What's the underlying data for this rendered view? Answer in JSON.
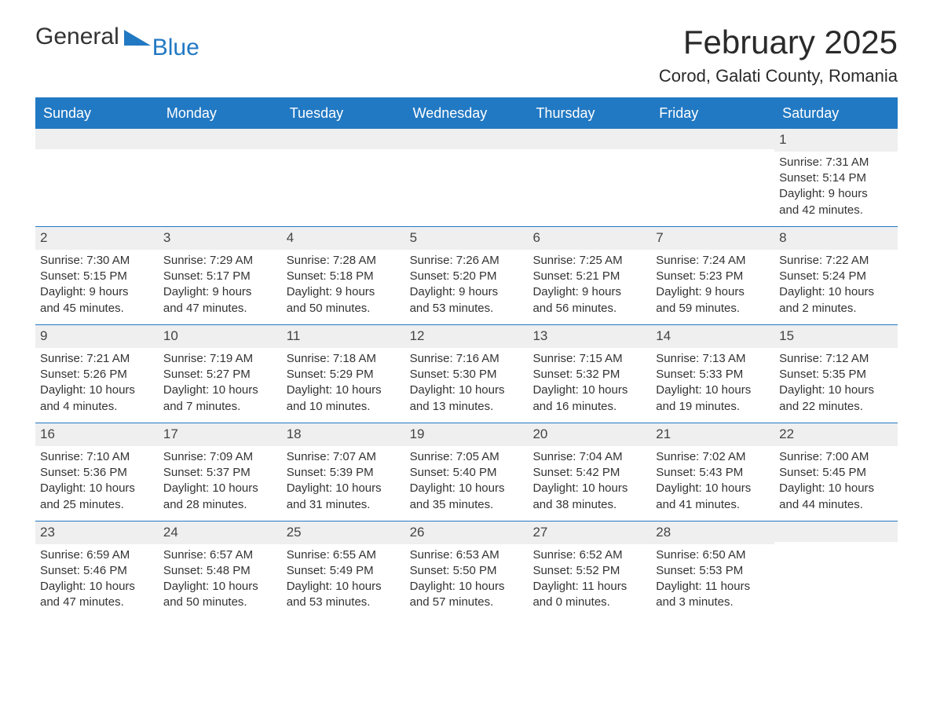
{
  "brand": {
    "general": "General",
    "blue": "Blue"
  },
  "title": "February 2025",
  "location": "Corod, Galati County, Romania",
  "colors": {
    "accent": "#2279c3",
    "header_text": "#ffffff",
    "row_bg": "#efefef",
    "text": "#333333",
    "background": "#ffffff"
  },
  "day_labels": [
    "Sunday",
    "Monday",
    "Tuesday",
    "Wednesday",
    "Thursday",
    "Friday",
    "Saturday"
  ],
  "weeks": [
    [
      null,
      null,
      null,
      null,
      null,
      null,
      {
        "n": "1",
        "sr": "Sunrise: 7:31 AM",
        "ss": "Sunset: 5:14 PM",
        "d1": "Daylight: 9 hours",
        "d2": "and 42 minutes."
      }
    ],
    [
      {
        "n": "2",
        "sr": "Sunrise: 7:30 AM",
        "ss": "Sunset: 5:15 PM",
        "d1": "Daylight: 9 hours",
        "d2": "and 45 minutes."
      },
      {
        "n": "3",
        "sr": "Sunrise: 7:29 AM",
        "ss": "Sunset: 5:17 PM",
        "d1": "Daylight: 9 hours",
        "d2": "and 47 minutes."
      },
      {
        "n": "4",
        "sr": "Sunrise: 7:28 AM",
        "ss": "Sunset: 5:18 PM",
        "d1": "Daylight: 9 hours",
        "d2": "and 50 minutes."
      },
      {
        "n": "5",
        "sr": "Sunrise: 7:26 AM",
        "ss": "Sunset: 5:20 PM",
        "d1": "Daylight: 9 hours",
        "d2": "and 53 minutes."
      },
      {
        "n": "6",
        "sr": "Sunrise: 7:25 AM",
        "ss": "Sunset: 5:21 PM",
        "d1": "Daylight: 9 hours",
        "d2": "and 56 minutes."
      },
      {
        "n": "7",
        "sr": "Sunrise: 7:24 AM",
        "ss": "Sunset: 5:23 PM",
        "d1": "Daylight: 9 hours",
        "d2": "and 59 minutes."
      },
      {
        "n": "8",
        "sr": "Sunrise: 7:22 AM",
        "ss": "Sunset: 5:24 PM",
        "d1": "Daylight: 10 hours",
        "d2": "and 2 minutes."
      }
    ],
    [
      {
        "n": "9",
        "sr": "Sunrise: 7:21 AM",
        "ss": "Sunset: 5:26 PM",
        "d1": "Daylight: 10 hours",
        "d2": "and 4 minutes."
      },
      {
        "n": "10",
        "sr": "Sunrise: 7:19 AM",
        "ss": "Sunset: 5:27 PM",
        "d1": "Daylight: 10 hours",
        "d2": "and 7 minutes."
      },
      {
        "n": "11",
        "sr": "Sunrise: 7:18 AM",
        "ss": "Sunset: 5:29 PM",
        "d1": "Daylight: 10 hours",
        "d2": "and 10 minutes."
      },
      {
        "n": "12",
        "sr": "Sunrise: 7:16 AM",
        "ss": "Sunset: 5:30 PM",
        "d1": "Daylight: 10 hours",
        "d2": "and 13 minutes."
      },
      {
        "n": "13",
        "sr": "Sunrise: 7:15 AM",
        "ss": "Sunset: 5:32 PM",
        "d1": "Daylight: 10 hours",
        "d2": "and 16 minutes."
      },
      {
        "n": "14",
        "sr": "Sunrise: 7:13 AM",
        "ss": "Sunset: 5:33 PM",
        "d1": "Daylight: 10 hours",
        "d2": "and 19 minutes."
      },
      {
        "n": "15",
        "sr": "Sunrise: 7:12 AM",
        "ss": "Sunset: 5:35 PM",
        "d1": "Daylight: 10 hours",
        "d2": "and 22 minutes."
      }
    ],
    [
      {
        "n": "16",
        "sr": "Sunrise: 7:10 AM",
        "ss": "Sunset: 5:36 PM",
        "d1": "Daylight: 10 hours",
        "d2": "and 25 minutes."
      },
      {
        "n": "17",
        "sr": "Sunrise: 7:09 AM",
        "ss": "Sunset: 5:37 PM",
        "d1": "Daylight: 10 hours",
        "d2": "and 28 minutes."
      },
      {
        "n": "18",
        "sr": "Sunrise: 7:07 AM",
        "ss": "Sunset: 5:39 PM",
        "d1": "Daylight: 10 hours",
        "d2": "and 31 minutes."
      },
      {
        "n": "19",
        "sr": "Sunrise: 7:05 AM",
        "ss": "Sunset: 5:40 PM",
        "d1": "Daylight: 10 hours",
        "d2": "and 35 minutes."
      },
      {
        "n": "20",
        "sr": "Sunrise: 7:04 AM",
        "ss": "Sunset: 5:42 PM",
        "d1": "Daylight: 10 hours",
        "d2": "and 38 minutes."
      },
      {
        "n": "21",
        "sr": "Sunrise: 7:02 AM",
        "ss": "Sunset: 5:43 PM",
        "d1": "Daylight: 10 hours",
        "d2": "and 41 minutes."
      },
      {
        "n": "22",
        "sr": "Sunrise: 7:00 AM",
        "ss": "Sunset: 5:45 PM",
        "d1": "Daylight: 10 hours",
        "d2": "and 44 minutes."
      }
    ],
    [
      {
        "n": "23",
        "sr": "Sunrise: 6:59 AM",
        "ss": "Sunset: 5:46 PM",
        "d1": "Daylight: 10 hours",
        "d2": "and 47 minutes."
      },
      {
        "n": "24",
        "sr": "Sunrise: 6:57 AM",
        "ss": "Sunset: 5:48 PM",
        "d1": "Daylight: 10 hours",
        "d2": "and 50 minutes."
      },
      {
        "n": "25",
        "sr": "Sunrise: 6:55 AM",
        "ss": "Sunset: 5:49 PM",
        "d1": "Daylight: 10 hours",
        "d2": "and 53 minutes."
      },
      {
        "n": "26",
        "sr": "Sunrise: 6:53 AM",
        "ss": "Sunset: 5:50 PM",
        "d1": "Daylight: 10 hours",
        "d2": "and 57 minutes."
      },
      {
        "n": "27",
        "sr": "Sunrise: 6:52 AM",
        "ss": "Sunset: 5:52 PM",
        "d1": "Daylight: 11 hours",
        "d2": "and 0 minutes."
      },
      {
        "n": "28",
        "sr": "Sunrise: 6:50 AM",
        "ss": "Sunset: 5:53 PM",
        "d1": "Daylight: 11 hours",
        "d2": "and 3 minutes."
      },
      null
    ]
  ]
}
